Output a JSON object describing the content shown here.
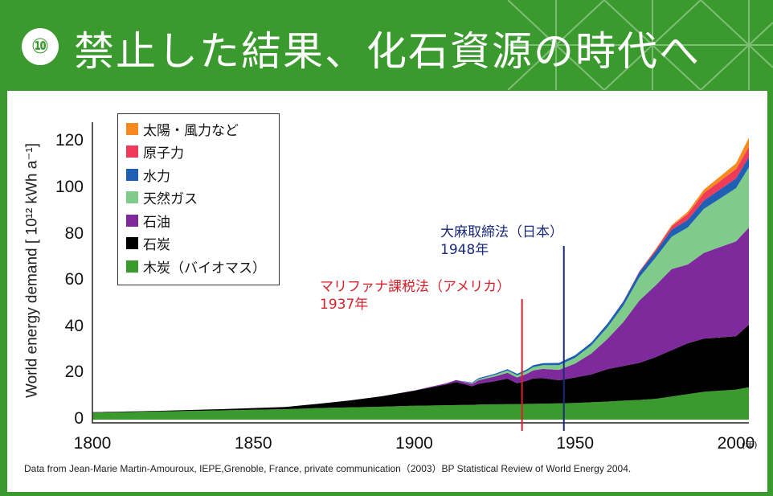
{
  "header": {
    "badge": "⑩",
    "title": "禁止した結果、化石資源の時代へ"
  },
  "chart_data": {
    "type": "area",
    "ylabel": "World energy demand [ 10¹² kWh a⁻¹]",
    "xunit": "(年)",
    "xlim": [
      1800,
      2004
    ],
    "ylim": [
      0,
      125
    ],
    "yticks": [
      "0",
      "20",
      "40",
      "60",
      "80",
      "100",
      "120"
    ],
    "ytick_values": [
      0,
      20,
      40,
      60,
      80,
      100,
      120
    ],
    "xticks": [
      "1800",
      "1850",
      "1900",
      "1950",
      "2000"
    ],
    "xtick_values": [
      1800,
      1850,
      1900,
      1950,
      2000
    ],
    "x": [
      1800,
      1820,
      1840,
      1860,
      1870,
      1880,
      1890,
      1900,
      1910,
      1913,
      1918,
      1920,
      1925,
      1929,
      1932,
      1935,
      1937,
      1940,
      1945,
      1950,
      1955,
      1960,
      1965,
      1970,
      1975,
      1980,
      1985,
      1990,
      1995,
      2000,
      2004
    ],
    "series": [
      {
        "name": "木炭（バイオマス）",
        "color": "#3a9a2e",
        "values": [
          3,
          3.5,
          4,
          4.5,
          5,
          5.3,
          5.6,
          6,
          6.2,
          6.3,
          6.4,
          6.5,
          6.6,
          6.7,
          6.7,
          6.8,
          6.8,
          6.9,
          7,
          7.2,
          7.5,
          7.8,
          8.2,
          8.5,
          9,
          10,
          11,
          12,
          12.5,
          13,
          14
        ]
      },
      {
        "name": "石炭",
        "color": "#000000",
        "values": [
          0.2,
          0.3,
          0.5,
          1,
          1.8,
          3,
          4.5,
          6.5,
          9,
          10,
          8,
          9,
          10,
          11,
          9,
          10,
          11,
          11,
          10,
          11,
          12,
          14,
          15,
          16,
          18,
          20,
          22,
          23,
          23,
          23,
          27
        ]
      },
      {
        "name": "石油",
        "color": "#7f2a9c",
        "values": [
          0,
          0,
          0,
          0,
          0,
          0,
          0,
          0.1,
          0.5,
          0.8,
          1,
          1.5,
          2,
          2.5,
          2.5,
          3,
          3.5,
          4,
          4.5,
          6,
          9,
          13,
          19,
          27,
          31,
          35,
          34,
          37,
          39,
          41,
          42
        ]
      },
      {
        "name": "天然ガス",
        "color": "#7fcb8a",
        "values": [
          0,
          0,
          0,
          0,
          0,
          0,
          0,
          0,
          0,
          0,
          0.3,
          0.5,
          0.7,
          1,
          1,
          1.2,
          1.4,
          1.6,
          2,
          2.5,
          3.5,
          5,
          7,
          10,
          12,
          14,
          16,
          19,
          21,
          23,
          26
        ]
      },
      {
        "name": "水力",
        "color": "#1f5fb4",
        "values": [
          0,
          0,
          0,
          0,
          0,
          0,
          0,
          0,
          0,
          0,
          0.3,
          0.4,
          0.5,
          0.6,
          0.6,
          0.7,
          0.8,
          0.9,
          1,
          1.1,
          1.3,
          1.6,
          1.9,
          2.3,
          2.6,
          3,
          3.3,
          3.6,
          3.9,
          4.2,
          4.5
        ]
      },
      {
        "name": "原子力",
        "color": "#f03a5a",
        "values": [
          0,
          0,
          0,
          0,
          0,
          0,
          0,
          0,
          0,
          0,
          0,
          0,
          0,
          0,
          0,
          0,
          0,
          0,
          0,
          0,
          0,
          0,
          0.1,
          0.3,
          0.8,
          1.5,
          2.5,
          3.2,
          3.6,
          4,
          4.3
        ]
      },
      {
        "name": "太陽・風力など",
        "color": "#f68a1e",
        "values": [
          0,
          0,
          0,
          0,
          0,
          0,
          0,
          0,
          0,
          0,
          0,
          0,
          0,
          0,
          0,
          0,
          0,
          0,
          0,
          0,
          0,
          0,
          0,
          0.1,
          0.2,
          0.5,
          1,
          1.5,
          2,
          2.5,
          4
        ]
      }
    ],
    "legend_order": [
      "太陽・風力など",
      "原子力",
      "水力",
      "天然ガス",
      "石油",
      "石炭",
      "木炭（バイオマス）"
    ],
    "legend_placement": "top-left",
    "annotations": [
      {
        "label": "マリファナ課税法（アメリカ）",
        "year_label": "1937年",
        "x": 1933.5,
        "color": "#d6222a"
      },
      {
        "label": "大麻取締法（日本）",
        "year_label": "1948年",
        "x": 1946.5,
        "color": "#1a2a7a"
      }
    ]
  },
  "source_note": "Data from Jean-Marie Martin-Amouroux, IEPE,Grenoble, France, private communication（2003）BP Statistical Review of World Energy 2004."
}
